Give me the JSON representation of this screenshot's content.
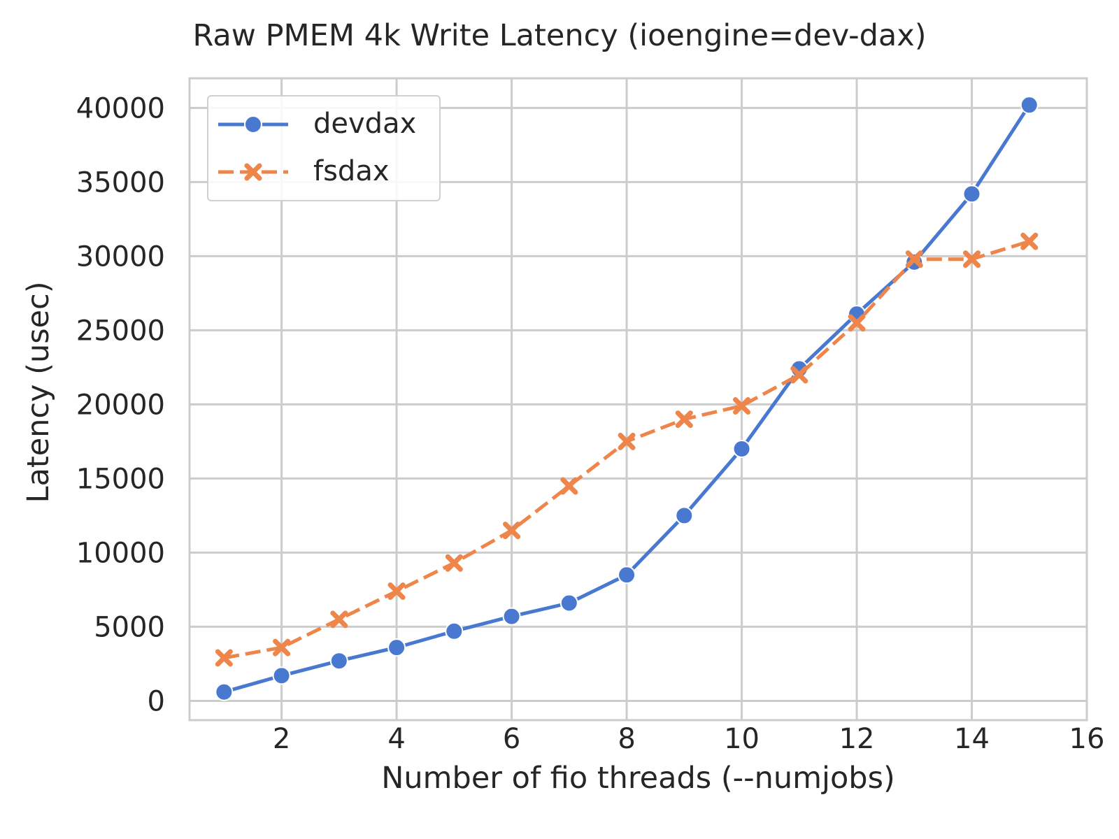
{
  "chart_data": {
    "type": "line",
    "title": "Raw PMEM 4k Write Latency (ioengine=dev-dax)",
    "xlabel": "Number of fio threads (--numjobs)",
    "ylabel": "Latency (usec)",
    "xlim": [
      0.4,
      16
    ],
    "ylim": [
      -1300,
      42000
    ],
    "xticks": [
      2,
      4,
      6,
      8,
      10,
      12,
      14,
      16
    ],
    "yticks": [
      0,
      5000,
      10000,
      15000,
      20000,
      25000,
      30000,
      35000,
      40000
    ],
    "grid": true,
    "legend_position": "top-left",
    "x": [
      1,
      2,
      3,
      4,
      5,
      6,
      7,
      8,
      9,
      10,
      11,
      12,
      13,
      14,
      15
    ],
    "series": [
      {
        "name": "devdax",
        "color": "#4878d0",
        "marker": "circle",
        "line_style": "solid",
        "values": [
          600,
          1700,
          2700,
          3600,
          4700,
          5700,
          6600,
          8500,
          12500,
          17000,
          22400,
          26100,
          29600,
          34200,
          40200
        ]
      },
      {
        "name": "fsdax",
        "color": "#ee854a",
        "marker": "x",
        "line_style": "dashed",
        "values": [
          2900,
          3600,
          5500,
          7400,
          9300,
          11500,
          14500,
          17500,
          19000,
          19900,
          22000,
          25500,
          29800,
          29800,
          31000
        ]
      }
    ]
  }
}
